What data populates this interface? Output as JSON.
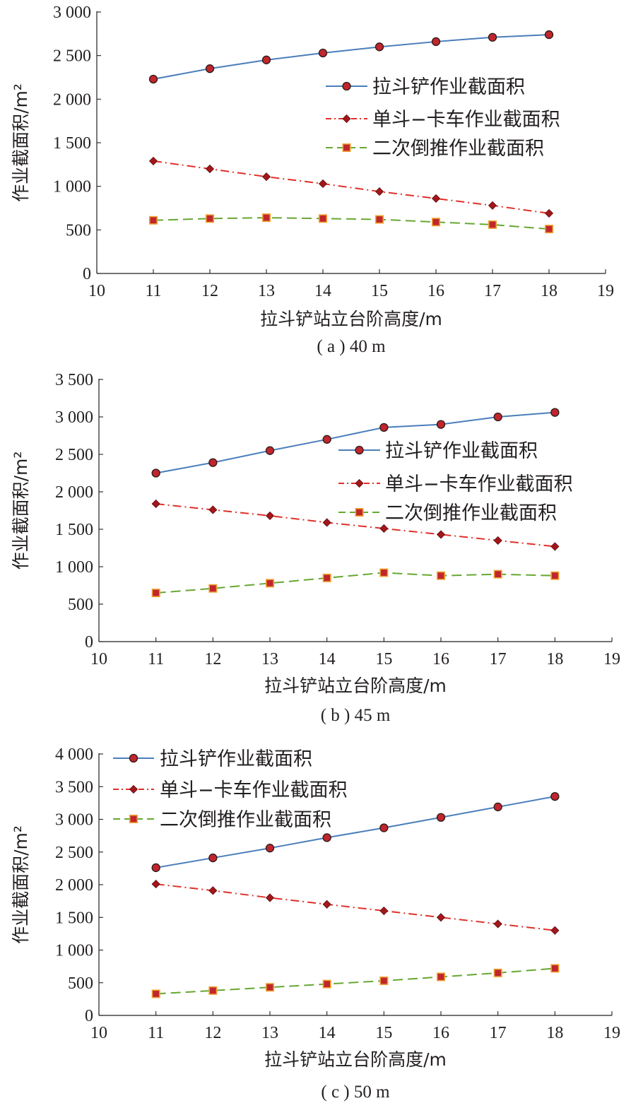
{
  "chart_data": [
    {
      "type": "line",
      "panel_label": "( a ) 40 m",
      "xlabel": "拉斗铲站立台阶高度/m",
      "ylabel": "作业截面积/m²",
      "xlim": [
        10,
        19
      ],
      "ylim": [
        0,
        3000
      ],
      "xticks": [
        10,
        11,
        12,
        13,
        14,
        15,
        16,
        17,
        18,
        19
      ],
      "yticks": [
        0,
        500,
        1000,
        1500,
        2000,
        2500,
        3000
      ],
      "ytick_labels": [
        "0",
        "500",
        "1 000",
        "1 500",
        "2 000",
        "2 500",
        "3 000"
      ],
      "legend_position": "center-right",
      "x": [
        11,
        12,
        13,
        14,
        15,
        16,
        17,
        18
      ],
      "series": [
        {
          "name": "拉斗铲作业截面积",
          "color": "#4a7ebb",
          "marker": "circle",
          "dash": "solid",
          "values": [
            2230,
            2350,
            2450,
            2530,
            2600,
            2660,
            2710,
            2740
          ]
        },
        {
          "name": "单斗−卡车作业截面积",
          "color": "#e0302a",
          "marker": "diamond",
          "dash": "dashdot",
          "values": [
            1290,
            1200,
            1110,
            1030,
            940,
            860,
            780,
            690
          ]
        },
        {
          "name": "二次倒推作业截面积",
          "color": "#66a832",
          "marker": "square",
          "dash": "dash",
          "values": [
            610,
            630,
            640,
            630,
            620,
            590,
            560,
            510
          ]
        }
      ]
    },
    {
      "type": "line",
      "panel_label": "( b ) 45 m",
      "xlabel": "拉斗铲站立台阶高度/m",
      "ylabel": "作业截面积/m²",
      "xlim": [
        10,
        19
      ],
      "ylim": [
        0,
        3500
      ],
      "xticks": [
        10,
        11,
        12,
        13,
        14,
        15,
        16,
        17,
        18,
        19
      ],
      "yticks": [
        0,
        500,
        1000,
        1500,
        2000,
        2500,
        3000,
        3500
      ],
      "ytick_labels": [
        "0",
        "500",
        "1 000",
        "1 500",
        "2 000",
        "2 500",
        "3 000",
        "3 500"
      ],
      "legend_position": "center-right",
      "x": [
        11,
        12,
        13,
        14,
        15,
        16,
        17,
        18
      ],
      "series": [
        {
          "name": "拉斗铲作业截面积",
          "color": "#4a7ebb",
          "marker": "circle",
          "dash": "solid",
          "values": [
            2250,
            2390,
            2550,
            2700,
            2860,
            2900,
            3000,
            3060
          ]
        },
        {
          "name": "单斗−卡车作业截面积",
          "color": "#e0302a",
          "marker": "diamond",
          "dash": "dashdot",
          "values": [
            1840,
            1760,
            1680,
            1590,
            1510,
            1430,
            1350,
            1270
          ]
        },
        {
          "name": "二次倒推作业截面积",
          "color": "#66a832",
          "marker": "square",
          "dash": "dash",
          "values": [
            650,
            710,
            780,
            850,
            920,
            880,
            900,
            880
          ]
        }
      ]
    },
    {
      "type": "line",
      "panel_label": "( c ) 50 m",
      "xlabel": "拉斗铲站立台阶高度/m",
      "ylabel": "作业截面积/m²",
      "xlim": [
        10,
        19
      ],
      "ylim": [
        0,
        4000
      ],
      "xticks": [
        10,
        11,
        12,
        13,
        14,
        15,
        16,
        17,
        18,
        19
      ],
      "yticks": [
        0,
        500,
        1000,
        1500,
        2000,
        2500,
        3000,
        3500,
        4000
      ],
      "ytick_labels": [
        "0",
        "500",
        "1 000",
        "1 500",
        "2 000",
        "2 500",
        "3 000",
        "3 500",
        "4 000"
      ],
      "legend_position": "top-left",
      "x": [
        11,
        12,
        13,
        14,
        15,
        16,
        17,
        18
      ],
      "series": [
        {
          "name": "拉斗铲作业截面积",
          "color": "#4a7ebb",
          "marker": "circle",
          "dash": "solid",
          "values": [
            2260,
            2410,
            2560,
            2720,
            2870,
            3030,
            3190,
            3350
          ]
        },
        {
          "name": "单斗−卡车作业截面积",
          "color": "#e0302a",
          "marker": "diamond",
          "dash": "dashdot",
          "values": [
            2010,
            1910,
            1800,
            1700,
            1600,
            1500,
            1400,
            1300
          ]
        },
        {
          "name": "二次倒推作业截面积",
          "color": "#66a832",
          "marker": "square",
          "dash": "dash",
          "values": [
            330,
            380,
            430,
            480,
            530,
            590,
            650,
            720
          ]
        }
      ]
    }
  ]
}
